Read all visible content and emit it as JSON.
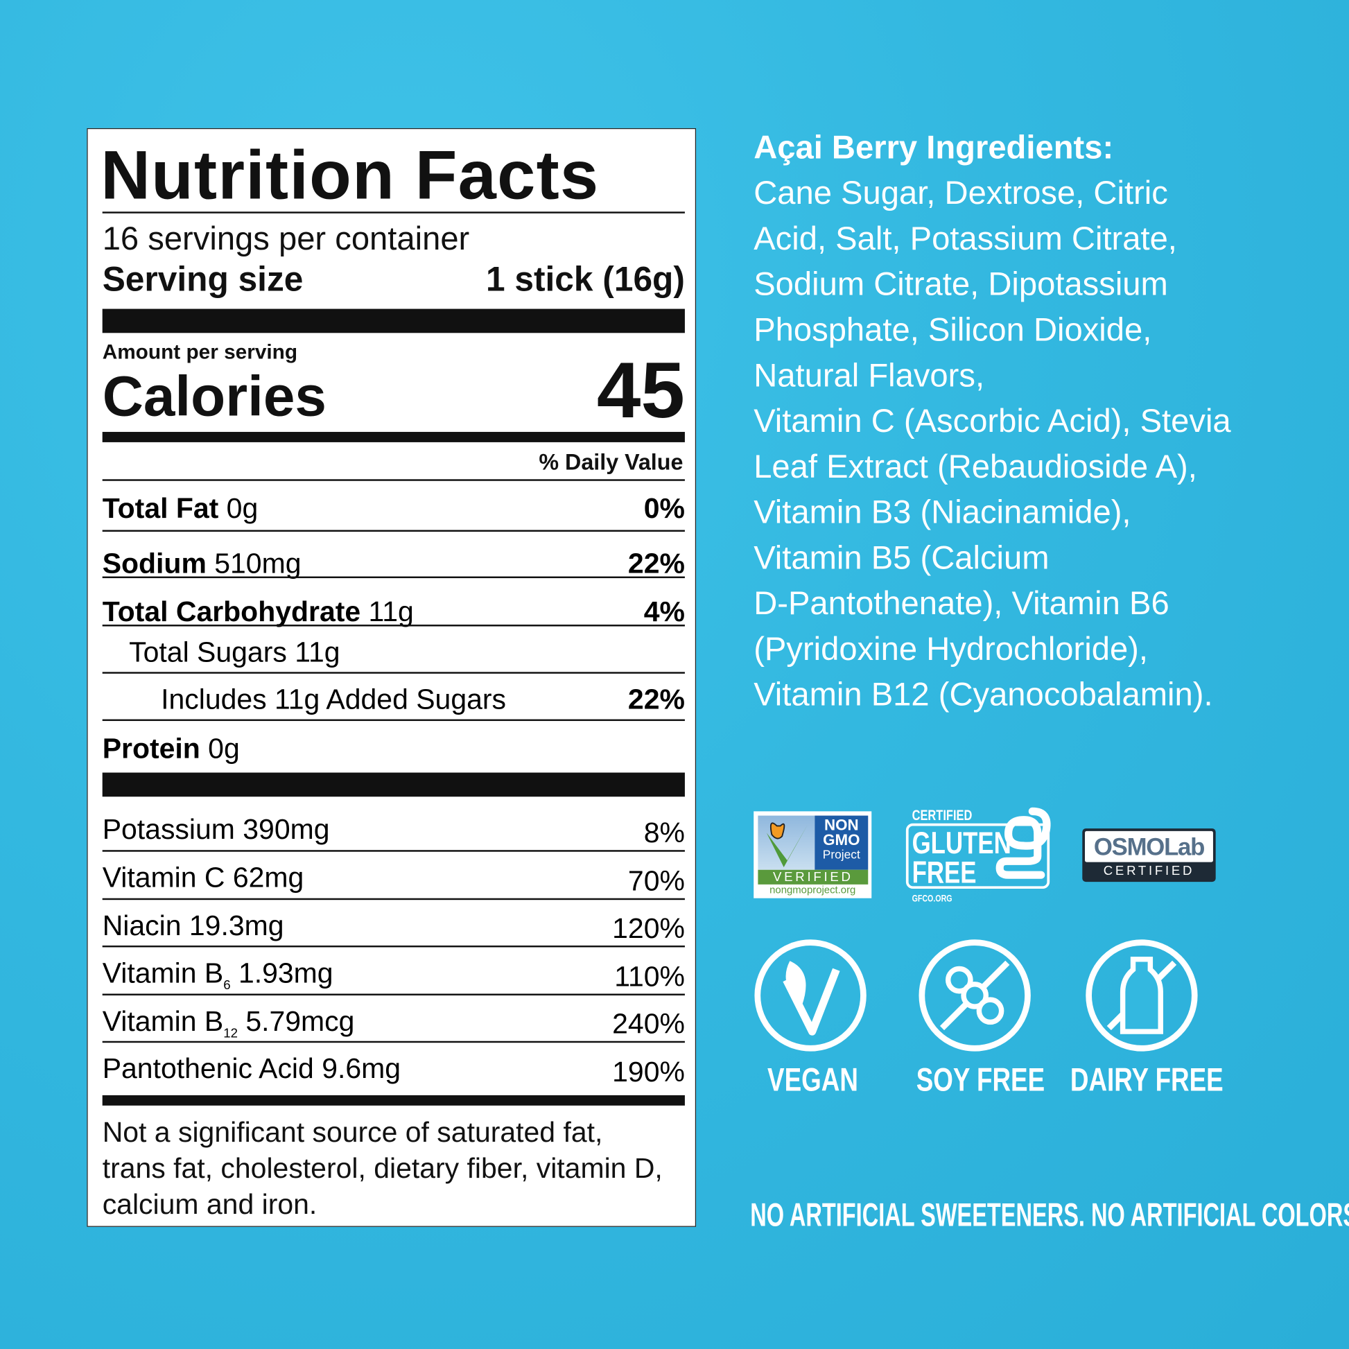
{
  "nutrition": {
    "title": "Nutrition Facts",
    "servings": "16 servings per container",
    "serving_size_label": "Serving size",
    "serving_size_value": "1 stick (16g)",
    "amount_per_serving": "Amount per serving",
    "calories_label": "Calories",
    "calories_value": "45",
    "daily_value_header": "% Daily Value",
    "nutrients": [
      {
        "name": "Total Fat",
        "amount": "0g",
        "dv": "0%",
        "indent": 0,
        "bold": true
      },
      {
        "name": "Sodium",
        "amount": "510mg",
        "dv": "22%",
        "indent": 0,
        "bold": true
      },
      {
        "name": "Total Carbohydrate",
        "amount": "11g",
        "dv": "4%",
        "indent": 0,
        "bold": true
      },
      {
        "name": "Total Sugars",
        "amount": "11g",
        "dv": "",
        "indent": 1,
        "bold": false
      },
      {
        "name": "Includes 11g Added Sugars",
        "amount": "",
        "dv": "22%",
        "indent": 2,
        "bold": false
      },
      {
        "name": "Protein",
        "amount": "0g",
        "dv": "",
        "indent": 0,
        "bold": true
      }
    ],
    "vitamins": [
      {
        "name": "Potassium",
        "sub": "",
        "amount": "390mg",
        "dv": "8%"
      },
      {
        "name": "Vitamin C",
        "sub": "",
        "amount": "62mg",
        "dv": "70%"
      },
      {
        "name": "Niacin",
        "sub": "",
        "amount": "19.3mg",
        "dv": "120%"
      },
      {
        "name": "Vitamin B",
        "sub": "6",
        "amount": "1.93mg",
        "dv": "110%"
      },
      {
        "name": "Vitamin B",
        "sub": "12",
        "amount": "5.79mcg",
        "dv": "240%"
      },
      {
        "name": "Pantothenic Acid",
        "sub": "",
        "amount": "9.6mg",
        "dv": "190%"
      }
    ],
    "footnote": "Not a significant source of saturated fat, trans fat, cholesterol, dietary fiber, vitamin D, calcium and iron."
  },
  "ingredients": {
    "title": "Açai Berry Ingredients:",
    "lines": [
      "Cane Sugar, Dextrose, Citric",
      "Acid, Salt, Potassium Citrate,",
      "Sodium Citrate, Dipotassium",
      "Phosphate, Silicon Dioxide,",
      "Natural Flavors,",
      "Vitamin C (Ascorbic Acid), Stevia",
      "Leaf Extract (Rebaudioside A),",
      "Vitamin B3 (Niacinamide),",
      "Vitamin B5 (Calcium",
      "D-Pantothenate), Vitamin B6",
      "(Pyridoxine Hydrochloride),",
      "Vitamin B12 (Cyanocobalamin)."
    ]
  },
  "certifications": {
    "nongmo": {
      "line1": "NON",
      "line2": "GMO",
      "line3": "Project",
      "verified": "VERIFIED",
      "url": "nongmoproject.org"
    },
    "gluten": {
      "certified": "CERTIFIED",
      "line1": "GLUTEN",
      "line2": "FREE",
      "url": "GFCO.ORG"
    },
    "osmo": {
      "brand": "OSMOLab",
      "certified": "CERTIFIED"
    }
  },
  "badges": [
    {
      "label": "VEGAN",
      "icon": "vegan-leaf-icon"
    },
    {
      "label": "SOY FREE",
      "icon": "no-soy-icon"
    },
    {
      "label": "DAIRY FREE",
      "icon": "no-dairy-icon"
    }
  ],
  "tagline": "NO ARTIFICIAL SWEETENERS. NO ARTIFICIAL COLORS.",
  "colors": {
    "background": "#33b8e0",
    "text_light": "#ffffff",
    "label_bg": "#ffffff",
    "nongmo_blue": "#1d5ba6",
    "nongmo_green": "#5a9a3c",
    "osmo_dark": "#1e2a36"
  }
}
